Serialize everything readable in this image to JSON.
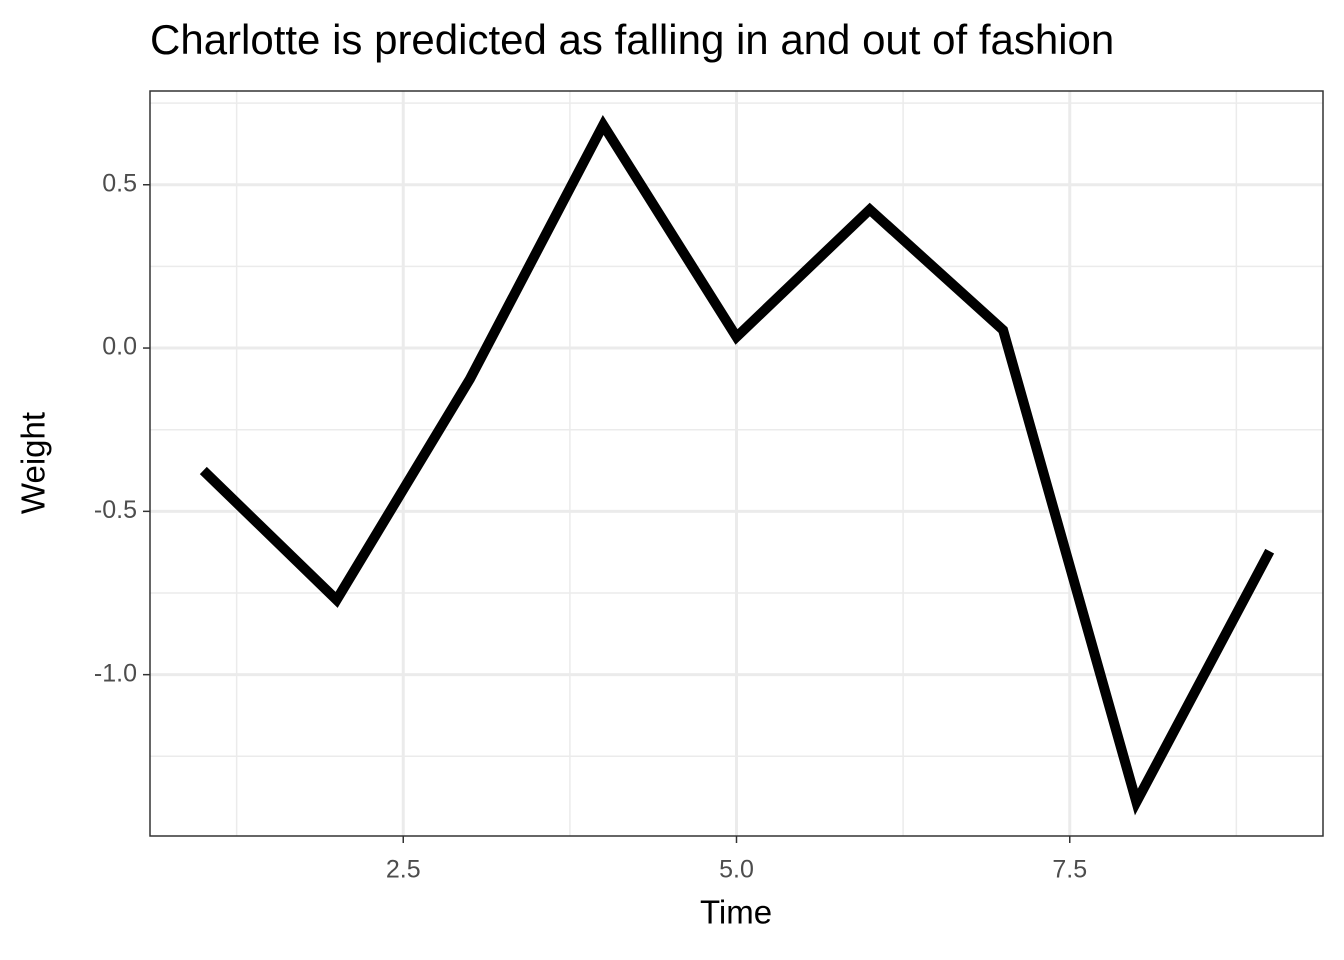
{
  "chart_data": {
    "type": "line",
    "title": "Charlotte is predicted as falling in and out of fashion",
    "x_label": "Time",
    "y_label": "Weight",
    "x": [
      1,
      2,
      3,
      4,
      5,
      6,
      7,
      8,
      9
    ],
    "series": [
      {
        "color": "#000000",
        "values": [
          -0.375,
          -0.771,
          -0.095,
          0.683,
          0.034,
          0.424,
          0.055,
          -1.39,
          -0.622
        ]
      }
    ],
    "xlim": [
      0.6,
      9.4
    ],
    "xticks": [
      {
        "value": 2.5,
        "label": "2.5"
      },
      {
        "value": 5,
        "label": "5.0"
      },
      {
        "value": 7.5,
        "label": "7.5"
      }
    ],
    "ylim": [
      -1.494,
      0.787
    ],
    "yticks": [
      {
        "value": -1,
        "label": "-1.0"
      },
      {
        "value": -0.5,
        "label": "-0.5"
      },
      {
        "value": 0,
        "label": "0.0"
      },
      {
        "value": 0.5,
        "label": "0.5"
      }
    ],
    "grid": true
  }
}
